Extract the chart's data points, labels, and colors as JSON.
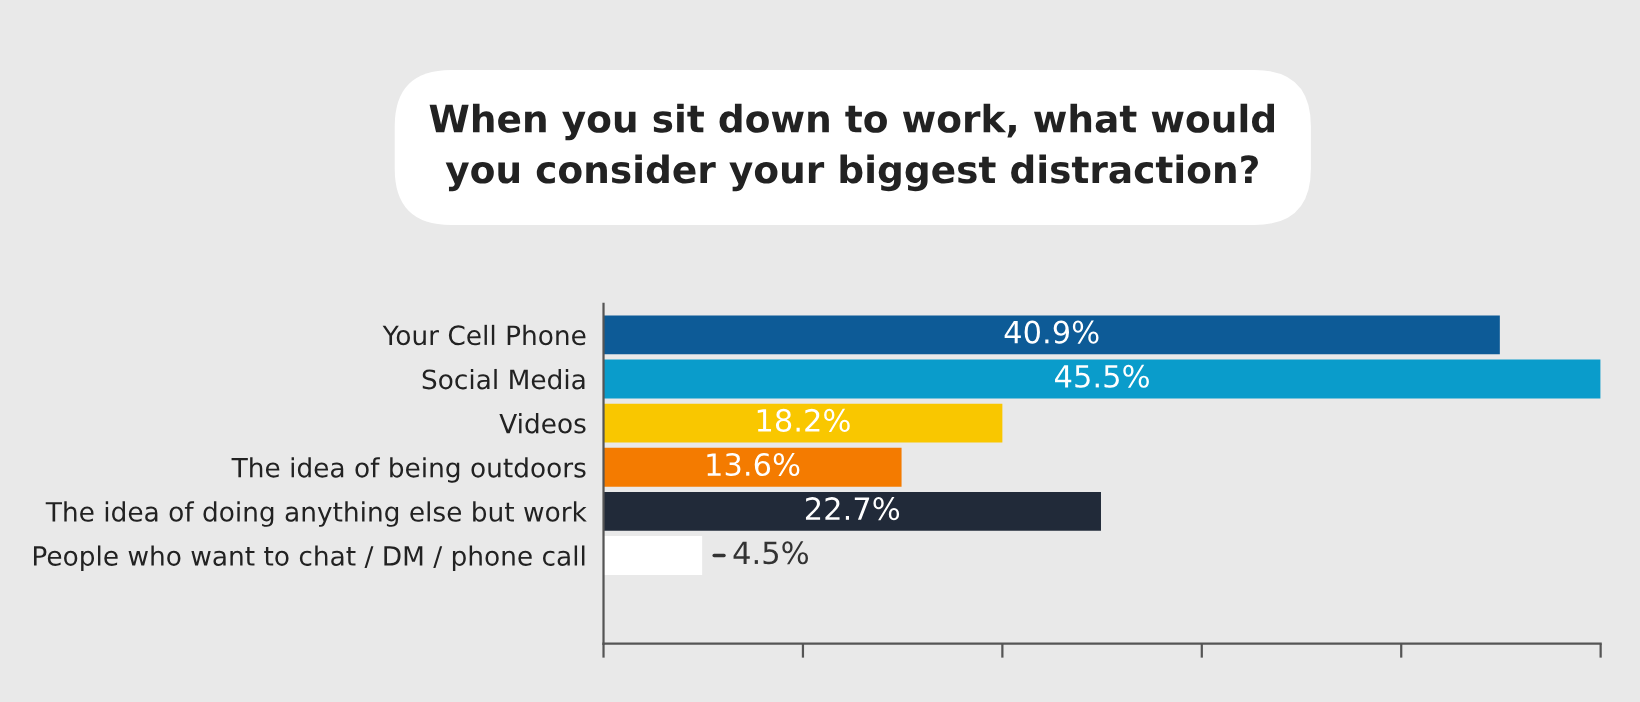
{
  "chart_data": {
    "type": "bar",
    "orientation": "horizontal",
    "title": "When you sit down to work, what would\nyou consider your biggest distraction?",
    "categories": [
      "Your Cell Phone",
      "Social Media",
      "Videos",
      "The idea of being outdoors",
      "The idea of doing anything else but work",
      "People who want to chat / DM / phone call"
    ],
    "values": [
      40.9,
      45.5,
      18.2,
      13.6,
      22.7,
      4.5
    ],
    "colors": [
      "#0d5b97",
      "#0a9ccb",
      "#f9c700",
      "#f47b00",
      "#212a39",
      "#ffffff"
    ],
    "value_labels": [
      "40.9%",
      "45.5%",
      "18.2%",
      "13.6%",
      "22.7%",
      "4.5%"
    ],
    "xlim": [
      0,
      45.5
    ],
    "xticks": [
      {
        "value": 0,
        "label": null
      },
      {
        "value": 9.1,
        "label": null
      },
      {
        "value": 18.2,
        "label": null
      },
      {
        "value": 27.3,
        "label": null
      },
      {
        "value": 36.4,
        "label": null
      },
      {
        "value": 45.5,
        "label": null
      }
    ],
    "grid": false,
    "legend": false
  }
}
